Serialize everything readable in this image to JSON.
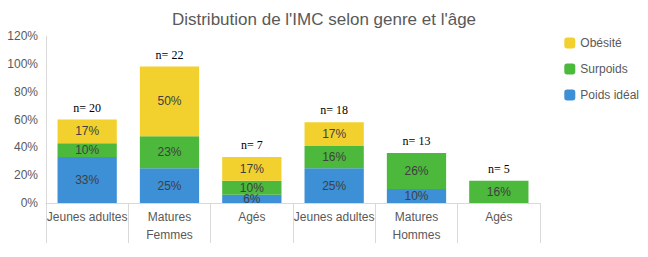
{
  "chart_data": {
    "type": "bar",
    "title": "Distribution de l'IMC selon genre et l'âge",
    "categories": [
      "Jeunes adultes",
      "Matures",
      "Agés",
      "Jeunes adultes",
      "Matures",
      "Agés"
    ],
    "category_groups": [
      "Femmes",
      "Femmes",
      "Femmes",
      "Hommes",
      "Hommes",
      "Hommes"
    ],
    "annotations": [
      "n= 20",
      "n= 22",
      "n= 7",
      "n= 18",
      "n= 13",
      "n= 5"
    ],
    "series": [
      {
        "name": "Poids idéal",
        "color": "#3d8fd6",
        "values": [
          33,
          25,
          6,
          25,
          10,
          null
        ],
        "value_labels": [
          "33%",
          "25%",
          "6%",
          "25%",
          "10%",
          null
        ]
      },
      {
        "name": "Surpoids",
        "color": "#4cb83c",
        "values": [
          10,
          23,
          10,
          16,
          26,
          16
        ],
        "value_labels": [
          "10%",
          "23%",
          "10%",
          "16%",
          "26%",
          "16%"
        ]
      },
      {
        "name": "Obésité",
        "color": "#f2d12e",
        "values": [
          17,
          50,
          17,
          17,
          null,
          null
        ],
        "value_labels": [
          "17%",
          "50%",
          "17%",
          "17%",
          null,
          null
        ]
      }
    ],
    "ylim": [
      0,
      120
    ],
    "yticks": [
      {
        "value": 0,
        "label": "0%"
      },
      {
        "value": 20,
        "label": "20%"
      },
      {
        "value": 40,
        "label": "40%"
      },
      {
        "value": 60,
        "label": "60%"
      },
      {
        "value": 80,
        "label": "80%"
      },
      {
        "value": 100,
        "label": "100%"
      },
      {
        "value": 120,
        "label": "120%"
      }
    ],
    "stacked": true,
    "data_labels": true,
    "grid": false,
    "legend": "right"
  }
}
